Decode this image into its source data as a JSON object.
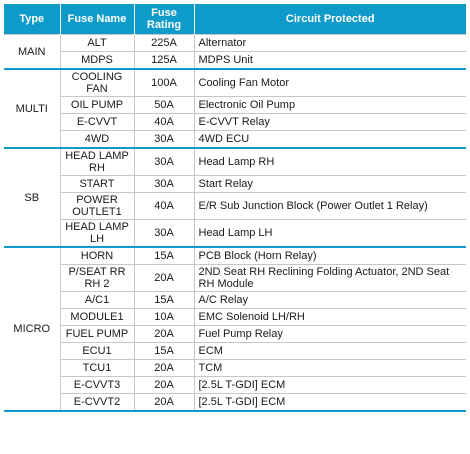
{
  "header": {
    "type": "Type",
    "fuse_name": "Fuse Name",
    "fuse_rating": "Fuse Rating",
    "circuit": "Circuit Protected"
  },
  "groups": [
    {
      "type": "MAIN",
      "rows": [
        {
          "name": "ALT",
          "rating": "225A",
          "circuit": "Alternator"
        },
        {
          "name": "MDPS",
          "rating": "125A",
          "circuit": "MDPS Unit"
        }
      ]
    },
    {
      "type": "MULTI",
      "rows": [
        {
          "name": "COOLING FAN",
          "rating": "100A",
          "circuit": "Cooling Fan Motor"
        },
        {
          "name": "OIL PUMP",
          "rating": "50A",
          "circuit": "Electronic Oil Pump"
        },
        {
          "name": "E-CVVT",
          "rating": "40A",
          "circuit": "E-CVVT Relay"
        },
        {
          "name": "4WD",
          "rating": "30A",
          "circuit": "4WD ECU"
        }
      ]
    },
    {
      "type": "SB",
      "rows": [
        {
          "name": "HEAD LAMP RH",
          "rating": "30A",
          "circuit": "Head Lamp RH"
        },
        {
          "name": "START",
          "rating": "30A",
          "circuit": "Start Relay"
        },
        {
          "name": "POWER OUTLET1",
          "rating": "40A",
          "circuit": "E/R Sub Junction Block (Power Outlet 1 Relay)"
        },
        {
          "name": "HEAD LAMP LH",
          "rating": "30A",
          "circuit": "Head Lamp LH"
        }
      ]
    },
    {
      "type": "MICRO",
      "rows": [
        {
          "name": "HORN",
          "rating": "15A",
          "circuit": "PCB Block (Horn Relay)"
        },
        {
          "name": "P/SEAT RR RH 2",
          "rating": "20A",
          "circuit": "2ND Seat RH Reclining Folding Actuator, 2ND Seat RH Module"
        },
        {
          "name": "A/C1",
          "rating": "15A",
          "circuit": "A/C Relay"
        },
        {
          "name": "MODULE1",
          "rating": "10A",
          "circuit": "EMC Solenoid LH/RH"
        },
        {
          "name": "FUEL PUMP",
          "rating": "20A",
          "circuit": "Fuel Pump Relay"
        },
        {
          "name": "ECU1",
          "rating": "15A",
          "circuit": "ECM"
        },
        {
          "name": "TCU1",
          "rating": "20A",
          "circuit": "TCM"
        },
        {
          "name": "E-CVVT3",
          "rating": "20A",
          "circuit": "[2.5L T-GDI] ECM"
        },
        {
          "name": "E-CVVT2",
          "rating": "20A",
          "circuit": "[2.5L T-GDI] ECM"
        }
      ]
    }
  ]
}
